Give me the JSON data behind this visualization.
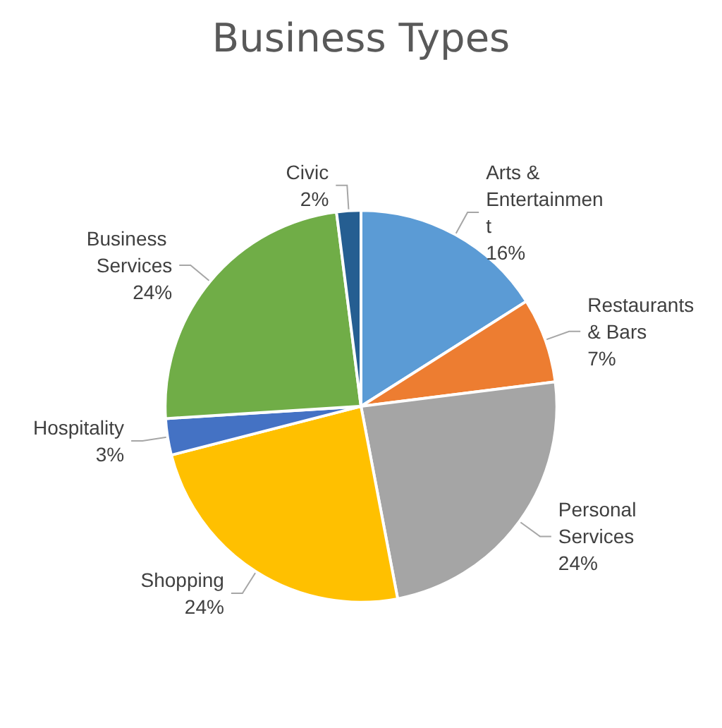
{
  "chart_data": {
    "type": "pie",
    "title": "Business Types",
    "categories": [
      "Arts & Entertainment",
      "Restaurants & Bars",
      "Personal Services",
      "Shopping",
      "Hospitality",
      "Business Services",
      "Civic"
    ],
    "values": [
      16,
      7,
      24,
      24,
      3,
      24,
      2
    ],
    "value_labels": [
      "16%",
      "7%",
      "24%",
      "24%",
      "3%",
      "24%",
      "2%"
    ],
    "colors": [
      "#5b9bd5",
      "#ed7d31",
      "#a5a5a5",
      "#ffc000",
      "#4472c4",
      "#70ad47",
      "#255e91"
    ],
    "legend": false
  }
}
